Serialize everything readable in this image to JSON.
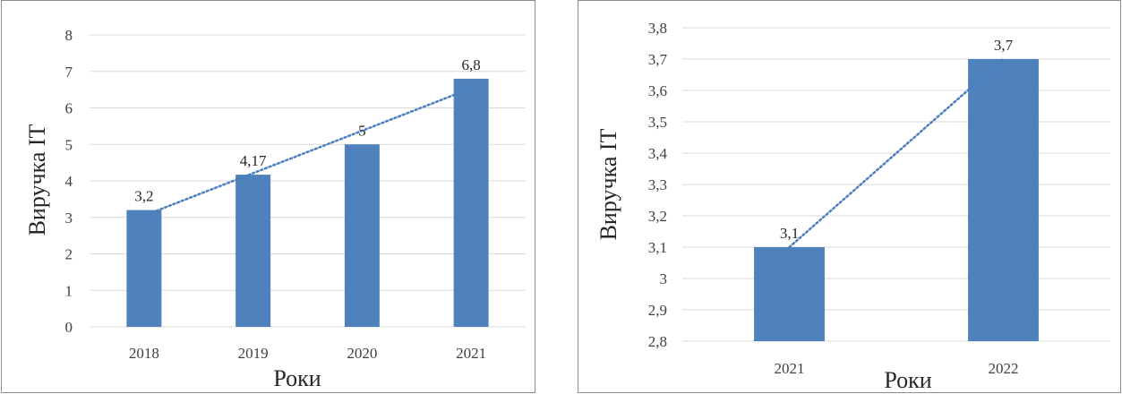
{
  "chart_data": [
    {
      "type": "bar",
      "categories": [
        "2018",
        "2019",
        "2020",
        "2021"
      ],
      "values": [
        3.2,
        4.17,
        5,
        6.8
      ],
      "data_labels": [
        "3,2",
        "4,17",
        "5",
        "6,8"
      ],
      "xlabel": "Роки",
      "ylabel": "Виручка ІТ",
      "ylim": [
        0,
        8
      ],
      "yticks": [
        0,
        1,
        2,
        3,
        4,
        5,
        6,
        7,
        8
      ],
      "ytick_labels": [
        "0",
        "1",
        "2",
        "3",
        "4",
        "5",
        "6",
        "7",
        "8"
      ],
      "trendline": "linear",
      "grid": true,
      "legend": "none",
      "colors": {
        "bar": "#4f81bd",
        "trendline": "#4a7ebf",
        "grid": "#d9d9d9"
      }
    },
    {
      "type": "bar",
      "categories": [
        "2021",
        "2022"
      ],
      "values": [
        3.1,
        3.7
      ],
      "data_labels": [
        "3,1",
        "3,7"
      ],
      "xlabel": "Роки",
      "ylabel": "Виручка ІТ",
      "ylim": [
        2.8,
        3.8
      ],
      "yticks": [
        2.8,
        2.9,
        3.0,
        3.1,
        3.2,
        3.3,
        3.4,
        3.5,
        3.6,
        3.7,
        3.8
      ],
      "ytick_labels": [
        "2,8",
        "2,9",
        "3",
        "3,1",
        "3,2",
        "3,3",
        "3,4",
        "3,5",
        "3,6",
        "3,7",
        "3,8"
      ],
      "trendline": "linear",
      "grid": true,
      "legend": "none",
      "colors": {
        "bar": "#4f81bd",
        "trendline": "#4a7ebf",
        "grid": "#d9d9d9"
      }
    }
  ]
}
